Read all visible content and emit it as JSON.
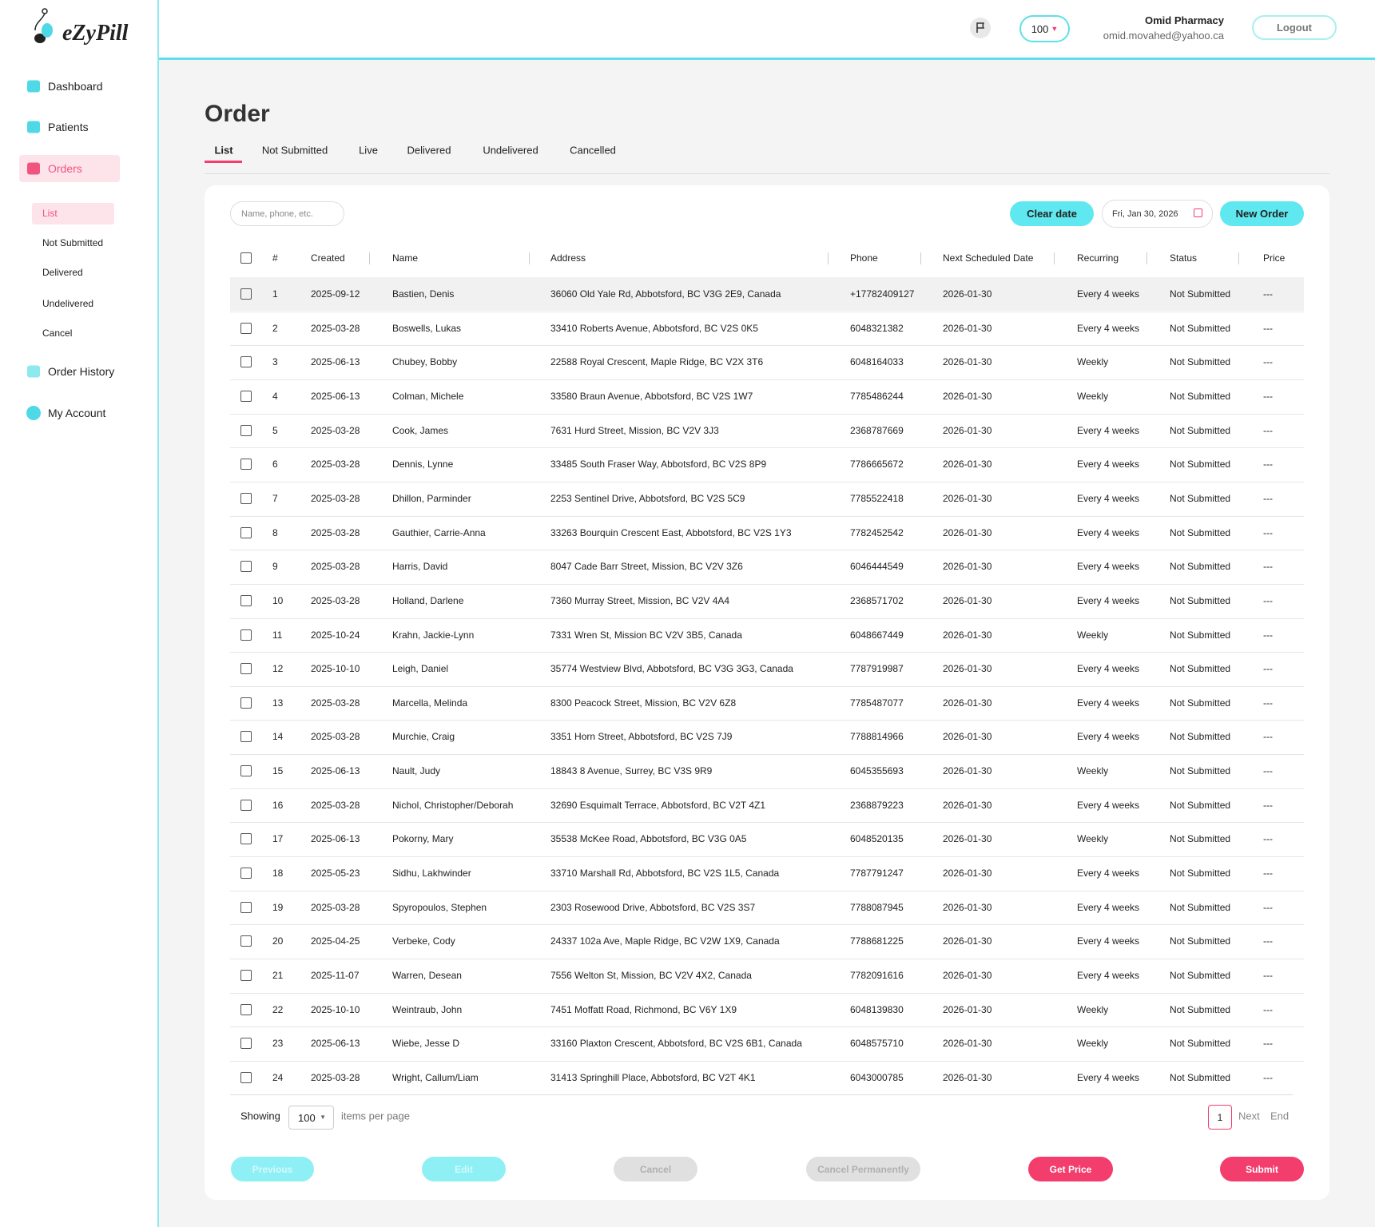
{
  "logo": "eZyPill",
  "sidebar": {
    "items": [
      "Dashboard",
      "Patients",
      "Orders"
    ],
    "sub_items": [
      "List",
      "Not Submitted",
      "Delivered",
      "Undelivered",
      "Cancel"
    ],
    "bottom_items": [
      "Order History",
      "My Account"
    ]
  },
  "header": {
    "badge": "100",
    "pharmacy": "Omid Pharmacy",
    "email": "omid.movahed@yahoo.ca",
    "logout": "Logout"
  },
  "page": {
    "title": "Order",
    "tabs": [
      "List",
      "Not Submitted",
      "Live",
      "Delivered",
      "Undelivered",
      "Cancelled"
    ]
  },
  "toolbar": {
    "search_placeholder": "Name, phone, etc.",
    "clear_date": "Clear date",
    "date": "Fri, Jan 30, 2026",
    "new_order": "New Order"
  },
  "table": {
    "columns": [
      "#",
      "Created",
      "Name",
      "Address",
      "Phone",
      "Next Scheduled Date",
      "Recurring",
      "Status",
      "Price"
    ],
    "rows": [
      [
        "1",
        "2025-09-12",
        "Bastien, Denis",
        "36060 Old Yale Rd, Abbotsford, BC V3G 2E9, Canada",
        "+17782409127",
        "2026-01-30",
        "Every 4 weeks",
        "Not Submitted",
        "---"
      ],
      [
        "2",
        "2025-03-28",
        "Boswells, Lukas",
        "33410 Roberts Avenue, Abbotsford, BC V2S 0K5",
        "6048321382",
        "2026-01-30",
        "Every 4 weeks",
        "Not Submitted",
        "---"
      ],
      [
        "3",
        "2025-06-13",
        "Chubey, Bobby",
        "22588 Royal Crescent, Maple Ridge, BC V2X 3T6",
        "6048164033",
        "2026-01-30",
        "Weekly",
        "Not Submitted",
        "---"
      ],
      [
        "4",
        "2025-06-13",
        "Colman, Michele",
        "33580 Braun Avenue, Abbotsford, BC V2S 1W7",
        "7785486244",
        "2026-01-30",
        "Weekly",
        "Not Submitted",
        "---"
      ],
      [
        "5",
        "2025-03-28",
        "Cook, James",
        "7631 Hurd Street, Mission, BC V2V 3J3",
        "2368787669",
        "2026-01-30",
        "Every 4 weeks",
        "Not Submitted",
        "---"
      ],
      [
        "6",
        "2025-03-28",
        "Dennis, Lynne",
        "33485 South Fraser Way, Abbotsford, BC V2S 8P9",
        "7786665672",
        "2026-01-30",
        "Every 4 weeks",
        "Not Submitted",
        "---"
      ],
      [
        "7",
        "2025-03-28",
        "Dhillon, Parminder",
        "2253 Sentinel Drive, Abbotsford, BC V2S 5C9",
        "7785522418",
        "2026-01-30",
        "Every 4 weeks",
        "Not Submitted",
        "---"
      ],
      [
        "8",
        "2025-03-28",
        "Gauthier, Carrie-Anna",
        "33263 Bourquin Crescent East, Abbotsford, BC V2S 1Y3",
        "7782452542",
        "2026-01-30",
        "Every 4 weeks",
        "Not Submitted",
        "---"
      ],
      [
        "9",
        "2025-03-28",
        "Harris, David",
        "8047 Cade Barr Street, Mission, BC V2V 3Z6",
        "6046444549",
        "2026-01-30",
        "Every 4 weeks",
        "Not Submitted",
        "---"
      ],
      [
        "10",
        "2025-03-28",
        "Holland, Darlene",
        "7360 Murray Street, Mission, BC V2V 4A4",
        "2368571702",
        "2026-01-30",
        "Every 4 weeks",
        "Not Submitted",
        "---"
      ],
      [
        "11",
        "2025-10-24",
        "Krahn, Jackie-Lynn",
        "7331 Wren St, Mission BC V2V 3B5, Canada",
        "6048667449",
        "2026-01-30",
        "Weekly",
        "Not Submitted",
        "---"
      ],
      [
        "12",
        "2025-10-10",
        "Leigh, Daniel",
        "35774 Westview Blvd, Abbotsford, BC V3G 3G3, Canada",
        "7787919987",
        "2026-01-30",
        "Every 4 weeks",
        "Not Submitted",
        "---"
      ],
      [
        "13",
        "2025-03-28",
        "Marcella, Melinda",
        "8300 Peacock Street, Mission, BC V2V 6Z8",
        "7785487077",
        "2026-01-30",
        "Every 4 weeks",
        "Not Submitted",
        "---"
      ],
      [
        "14",
        "2025-03-28",
        "Murchie, Craig",
        "3351 Horn Street, Abbotsford, BC V2S 7J9",
        "7788814966",
        "2026-01-30",
        "Every 4 weeks",
        "Not Submitted",
        "---"
      ],
      [
        "15",
        "2025-06-13",
        "Nault, Judy",
        "18843 8 Avenue, Surrey, BC V3S 9R9",
        "6045355693",
        "2026-01-30",
        "Weekly",
        "Not Submitted",
        "---"
      ],
      [
        "16",
        "2025-03-28",
        "Nichol, Christopher/Deborah",
        "32690 Esquimalt Terrace, Abbotsford, BC V2T 4Z1",
        "2368879223",
        "2026-01-30",
        "Every 4 weeks",
        "Not Submitted",
        "---"
      ],
      [
        "17",
        "2025-06-13",
        "Pokorny, Mary",
        "35538 McKee Road, Abbotsford, BC V3G 0A5",
        "6048520135",
        "2026-01-30",
        "Weekly",
        "Not Submitted",
        "---"
      ],
      [
        "18",
        "2025-05-23",
        "Sidhu, Lakhwinder",
        "33710 Marshall Rd, Abbotsford, BC V2S 1L5, Canada",
        "7787791247",
        "2026-01-30",
        "Every 4 weeks",
        "Not Submitted",
        "---"
      ],
      [
        "19",
        "2025-03-28",
        "Spyropoulos, Stephen",
        "2303 Rosewood Drive, Abbotsford, BC V2S 3S7",
        "7788087945",
        "2026-01-30",
        "Every 4 weeks",
        "Not Submitted",
        "---"
      ],
      [
        "20",
        "2025-04-25",
        "Verbeke, Cody",
        "24337 102a Ave, Maple Ridge, BC V2W 1X9, Canada",
        "7788681225",
        "2026-01-30",
        "Every 4 weeks",
        "Not Submitted",
        "---"
      ],
      [
        "21",
        "2025-11-07",
        "Warren, Desean",
        "7556 Welton St, Mission, BC V2V 4X2, Canada",
        "7782091616",
        "2026-01-30",
        "Every 4 weeks",
        "Not Submitted",
        "---"
      ],
      [
        "22",
        "2025-10-10",
        "Weintraub, John",
        "7451 Moffatt Road, Richmond, BC V6Y 1X9",
        "6048139830",
        "2026-01-30",
        "Weekly",
        "Not Submitted",
        "---"
      ],
      [
        "23",
        "2025-06-13",
        "Wiebe, Jesse D",
        "33160 Plaxton Crescent, Abbotsford, BC V2S 6B1, Canada",
        "6048575710",
        "2026-01-30",
        "Weekly",
        "Not Submitted",
        "---"
      ],
      [
        "24",
        "2025-03-28",
        "Wright, Callum/Liam",
        "31413 Springhill Place, Abbotsford, BC V2T 4K1",
        "6043000785",
        "2026-01-30",
        "Every 4 weeks",
        "Not Submitted",
        "---"
      ]
    ]
  },
  "pagination": {
    "showing": "Showing",
    "per_page": "100",
    "items_per_page": "items per page",
    "page": "1",
    "next": "Next",
    "end": "End"
  },
  "actions": [
    "Previous",
    "Edit",
    "Cancel",
    "Cancel Permanently",
    "Get Price",
    "Submit"
  ]
}
